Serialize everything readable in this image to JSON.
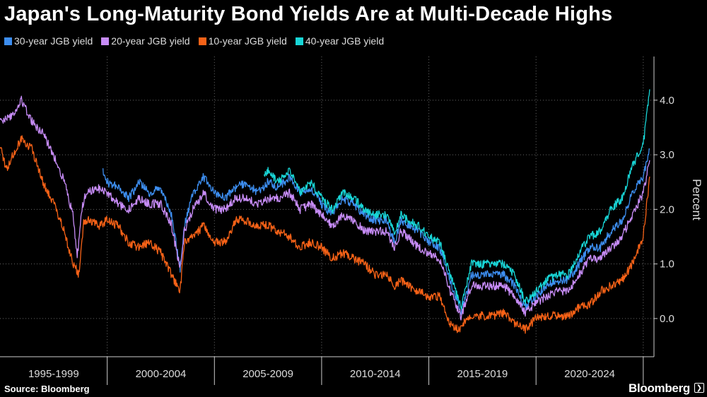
{
  "chart_data": {
    "type": "line",
    "title": "Japan's Long-Maturity Bond Yields Are at Multi-Decade Highs",
    "ylabel": "Percent",
    "source": "Source: Bloomberg",
    "brand": "Bloomberg",
    "ylim": [
      -0.7,
      4.8
    ],
    "yticks": [
      0.0,
      1.0,
      2.0,
      3.0,
      4.0
    ],
    "ytick_labels": [
      "0.0",
      "1.0",
      "2.0",
      "3.0",
      "4.0"
    ],
    "xlim": [
      1995.0,
      2025.5
    ],
    "x_periods": [
      {
        "label": "1995-1999",
        "start": 1995,
        "end": 2000
      },
      {
        "label": "2000-2004",
        "start": 2000,
        "end": 2005
      },
      {
        "label": "2005-2009",
        "start": 2005,
        "end": 2010
      },
      {
        "label": "2010-2014",
        "start": 2010,
        "end": 2015
      },
      {
        "label": "2015-2019",
        "start": 2015,
        "end": 2020
      },
      {
        "label": "2020-2024",
        "start": 2020,
        "end": 2025
      }
    ],
    "grid": true,
    "legend_position": "top-left",
    "series": [
      {
        "name": "30-year JGB yield",
        "color": "#3d8ef0",
        "x": [
          1999.8,
          2000.0,
          2000.5,
          2001.0,
          2001.5,
          2002.0,
          2002.5,
          2003.0,
          2003.4,
          2003.6,
          2004.0,
          2004.5,
          2005.0,
          2005.5,
          2006.0,
          2006.5,
          2007.0,
          2007.5,
          2008.0,
          2008.5,
          2009.0,
          2009.5,
          2010.0,
          2010.5,
          2011.0,
          2011.5,
          2012.0,
          2012.5,
          2013.0,
          2013.4,
          2013.7,
          2014.0,
          2014.5,
          2015.0,
          2015.5,
          2016.0,
          2016.5,
          2017.0,
          2017.5,
          2018.0,
          2018.5,
          2019.0,
          2019.5,
          2020.0,
          2020.5,
          2021.0,
          2021.5,
          2022.0,
          2022.5,
          2023.0,
          2023.5,
          2024.0,
          2024.5,
          2025.0,
          2025.3
        ],
        "y": [
          2.7,
          2.5,
          2.4,
          2.2,
          2.5,
          2.3,
          2.4,
          1.9,
          0.9,
          1.7,
          2.3,
          2.6,
          2.3,
          2.2,
          2.4,
          2.5,
          2.3,
          2.5,
          2.4,
          2.6,
          2.3,
          2.4,
          2.1,
          1.9,
          2.2,
          2.1,
          1.9,
          1.8,
          1.8,
          1.4,
          1.8,
          1.7,
          1.6,
          1.4,
          1.3,
          0.7,
          0.1,
          0.8,
          0.8,
          0.8,
          0.8,
          0.6,
          0.2,
          0.4,
          0.6,
          0.7,
          0.7,
          1.0,
          1.3,
          1.3,
          1.6,
          1.8,
          2.3,
          2.6,
          3.1
        ]
      },
      {
        "name": "20-year JGB yield",
        "color": "#c78cf7",
        "x": [
          1995.0,
          1995.5,
          1996.0,
          1996.5,
          1997.0,
          1997.5,
          1998.0,
          1998.4,
          1998.6,
          1998.8,
          1999.0,
          1999.5,
          2000.0,
          2000.5,
          2001.0,
          2001.5,
          2002.0,
          2002.5,
          2003.0,
          2003.4,
          2003.6,
          2004.0,
          2004.5,
          2005.0,
          2005.5,
          2006.0,
          2006.5,
          2007.0,
          2007.5,
          2008.0,
          2008.5,
          2009.0,
          2009.5,
          2010.0,
          2010.5,
          2011.0,
          2011.5,
          2012.0,
          2012.5,
          2013.0,
          2013.4,
          2013.7,
          2014.0,
          2014.5,
          2015.0,
          2015.5,
          2016.0,
          2016.5,
          2017.0,
          2017.5,
          2018.0,
          2018.5,
          2019.0,
          2019.5,
          2020.0,
          2020.5,
          2021.0,
          2021.5,
          2022.0,
          2022.5,
          2023.0,
          2023.5,
          2024.0,
          2024.5,
          2025.0,
          2025.3
        ],
        "y": [
          3.6,
          3.7,
          4.0,
          3.6,
          3.4,
          3.0,
          2.5,
          1.9,
          1.1,
          2.0,
          2.3,
          2.4,
          2.3,
          2.1,
          2.0,
          2.2,
          2.1,
          2.1,
          1.7,
          0.9,
          1.6,
          2.0,
          2.3,
          2.0,
          2.0,
          2.2,
          2.2,
          2.1,
          2.2,
          2.2,
          2.3,
          2.0,
          2.1,
          1.9,
          1.7,
          1.9,
          1.8,
          1.6,
          1.6,
          1.6,
          1.3,
          1.6,
          1.5,
          1.3,
          1.2,
          1.1,
          0.5,
          0.05,
          0.6,
          0.6,
          0.6,
          0.6,
          0.4,
          0.1,
          0.3,
          0.4,
          0.5,
          0.5,
          0.8,
          1.1,
          1.1,
          1.3,
          1.5,
          1.9,
          2.3,
          2.9
        ]
      },
      {
        "name": "10-year JGB yield",
        "color": "#f76217",
        "x": [
          1995.0,
          1995.3,
          1995.6,
          1996.0,
          1996.5,
          1997.0,
          1997.5,
          1998.0,
          1998.4,
          1998.7,
          1998.9,
          1999.2,
          1999.6,
          2000.0,
          2000.5,
          2001.0,
          2001.5,
          2002.0,
          2002.5,
          2003.0,
          2003.4,
          2003.6,
          2004.0,
          2004.5,
          2005.0,
          2005.5,
          2006.0,
          2006.5,
          2007.0,
          2007.5,
          2008.0,
          2008.5,
          2009.0,
          2009.5,
          2010.0,
          2010.5,
          2011.0,
          2011.5,
          2012.0,
          2012.5,
          2013.0,
          2013.4,
          2013.7,
          2014.0,
          2014.5,
          2015.0,
          2015.5,
          2016.0,
          2016.4,
          2016.8,
          2017.0,
          2017.5,
          2018.0,
          2018.5,
          2019.0,
          2019.5,
          2020.0,
          2020.5,
          2021.0,
          2021.5,
          2022.0,
          2022.5,
          2023.0,
          2023.5,
          2024.0,
          2024.5,
          2025.0,
          2025.3
        ],
        "y": [
          3.2,
          2.7,
          3.0,
          3.3,
          3.1,
          2.5,
          2.1,
          1.6,
          1.0,
          0.8,
          1.8,
          1.8,
          1.7,
          1.8,
          1.7,
          1.4,
          1.3,
          1.4,
          1.2,
          0.8,
          0.5,
          1.4,
          1.5,
          1.7,
          1.4,
          1.4,
          1.8,
          1.8,
          1.7,
          1.7,
          1.6,
          1.5,
          1.3,
          1.4,
          1.3,
          1.1,
          1.2,
          1.1,
          1.0,
          0.8,
          0.8,
          0.6,
          0.7,
          0.6,
          0.5,
          0.4,
          0.4,
          -0.1,
          -0.2,
          0.0,
          0.05,
          0.05,
          0.05,
          0.1,
          -0.1,
          -0.2,
          0.0,
          0.05,
          0.05,
          0.05,
          0.2,
          0.25,
          0.5,
          0.6,
          0.7,
          1.0,
          1.5,
          2.6
        ]
      },
      {
        "name": "40-year JGB yield",
        "color": "#18d5d6",
        "x": [
          2007.3,
          2007.5,
          2008.0,
          2008.5,
          2009.0,
          2009.5,
          2010.0,
          2010.5,
          2011.0,
          2011.5,
          2012.0,
          2012.5,
          2013.0,
          2013.4,
          2013.7,
          2014.0,
          2014.5,
          2015.0,
          2015.5,
          2016.0,
          2016.5,
          2017.0,
          2017.5,
          2018.0,
          2018.5,
          2019.0,
          2019.5,
          2020.0,
          2020.5,
          2021.0,
          2021.5,
          2022.0,
          2022.5,
          2023.0,
          2023.5,
          2024.0,
          2024.5,
          2025.0,
          2025.3
        ],
        "y": [
          2.6,
          2.7,
          2.5,
          2.7,
          2.3,
          2.5,
          2.2,
          2.0,
          2.3,
          2.2,
          2.0,
          1.9,
          1.9,
          1.6,
          1.9,
          1.8,
          1.7,
          1.5,
          1.4,
          0.8,
          0.2,
          1.0,
          1.0,
          1.0,
          1.0,
          0.8,
          0.3,
          0.5,
          0.7,
          0.8,
          0.8,
          1.2,
          1.5,
          1.6,
          2.0,
          2.2,
          2.8,
          3.2,
          4.2
        ]
      }
    ]
  }
}
